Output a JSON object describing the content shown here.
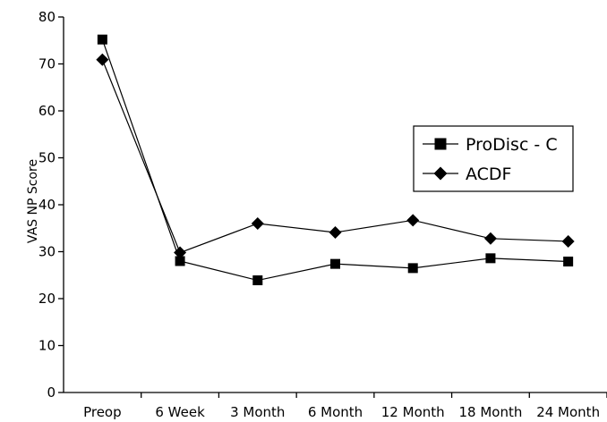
{
  "chart_data": {
    "type": "line",
    "title": "",
    "xlabel": "",
    "ylabel": "VAS NP Score",
    "categories": [
      "Preop",
      "6 Week",
      "3 Month",
      "6 Month",
      "12 Month",
      "18 Month",
      "24 Month"
    ],
    "ylim": [
      0,
      80
    ],
    "yticks": [
      "0",
      "10",
      "20",
      "30",
      "40",
      "50",
      "60",
      "70",
      "80"
    ],
    "grid": false,
    "legend_position": "right",
    "series": [
      {
        "name": "ProDisc - C",
        "marker": "square",
        "values": [
          75.2,
          28.0,
          23.9,
          27.4,
          26.5,
          28.6,
          27.9
        ]
      },
      {
        "name": "ACDF",
        "marker": "diamond",
        "values": [
          70.9,
          29.8,
          36.0,
          34.1,
          36.7,
          32.8,
          32.2
        ]
      }
    ],
    "colors": {
      "line": "#000000",
      "marker": "#000000",
      "background": "#ffffff"
    }
  }
}
